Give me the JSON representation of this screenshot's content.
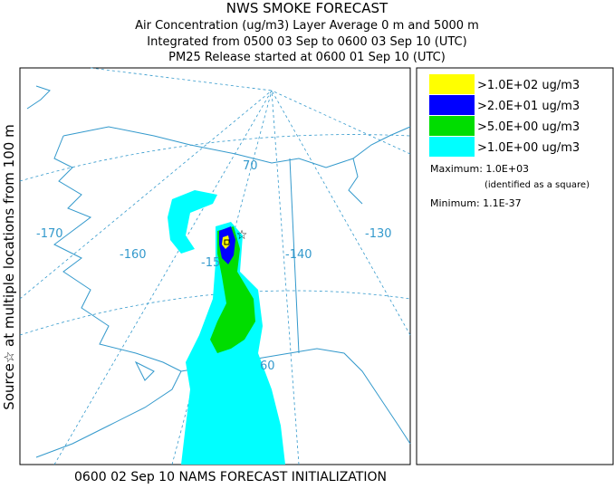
{
  "header": {
    "title": "NWS SMOKE FORECAST",
    "lines": [
      "Air Concentration (ug/m3) Layer Average    0 m and  5000 m",
      "Integrated from 0500 03 Sep to 0600 03 Sep 10 (UTC)",
      "PM25 Release started at 0600 01 Sep 10 (UTC)"
    ]
  },
  "side_label": "Source☆ at multiple locations  from   100 m",
  "footer": "0600 02 Sep 10 NAMS FORECAST INITIALIZATION",
  "legend": {
    "items": [
      {
        "label": ">1.0E+02 ug/m3",
        "color": "#ffff00"
      },
      {
        "label": ">2.0E+01 ug/m3",
        "color": "#0000ff"
      },
      {
        "label": ">5.0E+00 ug/m3",
        "color": "#00dd00"
      },
      {
        "label": ">1.0E+00 ug/m3",
        "color": "#00ffff"
      }
    ],
    "maximum": "Maximum: 1.0E+03",
    "maximum_note": "(identified as a square)",
    "minimum": "Minimum: 1.1E-37"
  },
  "map": {
    "labels": [
      "-170",
      "-160",
      "-15",
      "-140",
      "-130",
      "70",
      "60"
    ]
  }
}
